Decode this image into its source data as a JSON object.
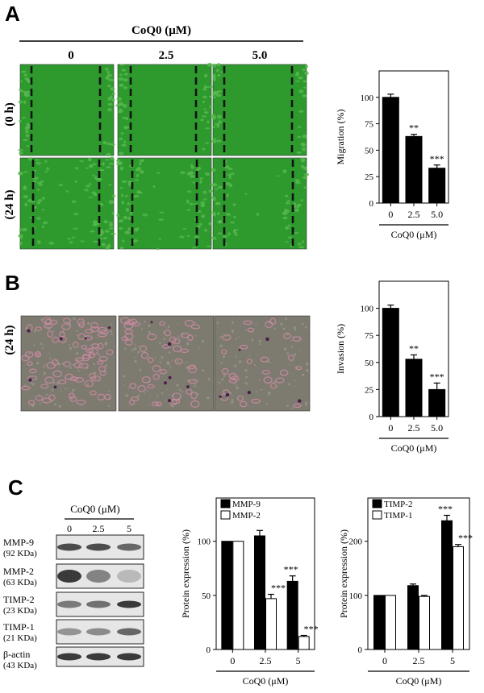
{
  "panels": {
    "a": {
      "letter": "A",
      "header": "CoQ0 (μM)",
      "columns": [
        "0",
        "2.5",
        "5.0"
      ],
      "rows": [
        "(0 h)",
        "(24 h)"
      ],
      "colors": {
        "cell_bg": "#2e9a2e",
        "cell_light": "#57b94f",
        "dash": "#111111"
      }
    },
    "b": {
      "letter": "B",
      "row": "(24 h)",
      "colors": {
        "bg": "#7d7a70",
        "cell": "#c98aa0",
        "stain": "#4a2048"
      }
    },
    "c": {
      "letter": "C",
      "header": "CoQ0 (μM)",
      "lanes": [
        "0",
        "2.5",
        "5"
      ],
      "blots": [
        {
          "name": "MMP-9",
          "size": "(92 KDa)"
        },
        {
          "name": "MMP-2",
          "size": "(63 KDa)"
        },
        {
          "name": "TIMP-2",
          "size": "(23 KDa)"
        },
        {
          "name": "TIMP-1",
          "size": "(21 KDa)"
        },
        {
          "name": "β-actin",
          "size": "(43 KDa)"
        }
      ]
    }
  },
  "chart_data": [
    {
      "type": "bar",
      "panel": "A",
      "categories": [
        "0",
        "2.5",
        "5.0"
      ],
      "values": [
        100,
        63,
        33
      ],
      "errors": [
        3,
        2,
        3
      ],
      "significance": [
        "",
        "**",
        "***"
      ],
      "ylabel": "Migration (%)",
      "xlabel": "CoQ0 (μM)",
      "ylim": [
        0,
        125
      ],
      "yticks": [
        0,
        25,
        50,
        75,
        100
      ]
    },
    {
      "type": "bar",
      "panel": "B",
      "categories": [
        "0",
        "2.5",
        "5.0"
      ],
      "values": [
        100,
        53,
        25
      ],
      "errors": [
        3,
        4,
        6
      ],
      "significance": [
        "",
        "**",
        "***"
      ],
      "ylabel": "Invasion (%)",
      "xlabel": "CoQ0 (μM)",
      "ylim": [
        0,
        125
      ],
      "yticks": [
        0,
        25,
        50,
        75,
        100
      ]
    },
    {
      "type": "bar",
      "panel": "C",
      "categories": [
        "0",
        "2.5",
        "5"
      ],
      "series": [
        {
          "name": "MMP-9",
          "values": [
            100,
            105,
            63
          ],
          "errors": [
            0,
            5,
            5
          ],
          "significance": [
            "",
            "",
            "***"
          ]
        },
        {
          "name": "MMP-2",
          "values": [
            100,
            47,
            12
          ],
          "errors": [
            0,
            4,
            1
          ],
          "significance": [
            "",
            "***",
            "***"
          ]
        }
      ],
      "ylabel": "Protein expression (%)",
      "xlabel": "CoQ0 (μM)",
      "ylim": [
        0,
        140
      ],
      "yticks": [
        0,
        50,
        100
      ],
      "legend": "top-left"
    },
    {
      "type": "bar",
      "panel": "C",
      "categories": [
        "0",
        "2.5",
        "5"
      ],
      "series": [
        {
          "name": "TIMP-2",
          "values": [
            100,
            118,
            238
          ],
          "errors": [
            0,
            3,
            10
          ],
          "significance": [
            "",
            "",
            "***"
          ]
        },
        {
          "name": "TIMP-1",
          "values": [
            100,
            98,
            190
          ],
          "errors": [
            0,
            2,
            4
          ],
          "significance": [
            "",
            "",
            "***"
          ]
        }
      ],
      "ylabel": "Protein expression (%)",
      "xlabel": "CoQ0 (μM)",
      "ylim": [
        0,
        280
      ],
      "yticks": [
        0,
        100,
        200
      ],
      "legend": "top-left"
    }
  ]
}
